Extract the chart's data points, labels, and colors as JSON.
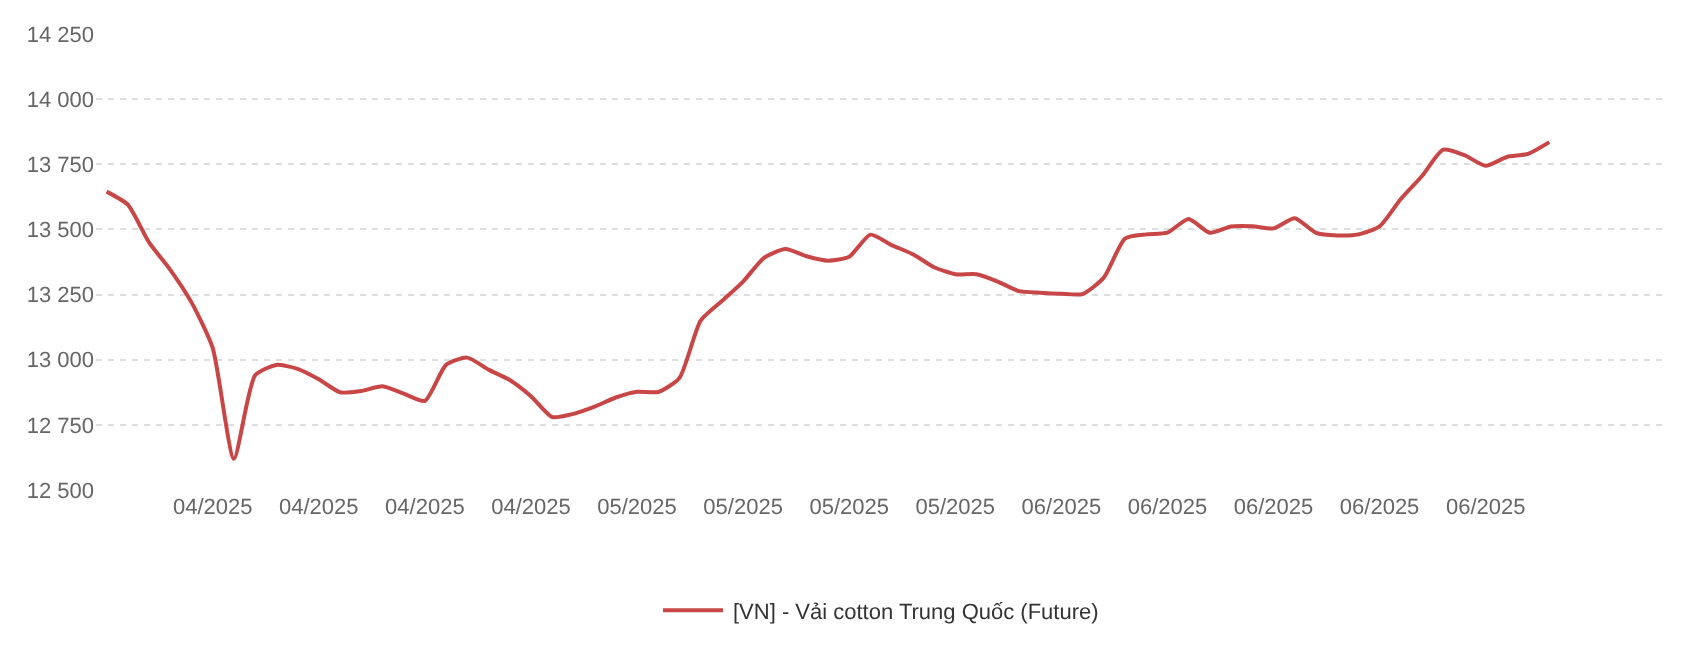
{
  "chart_data": {
    "type": "line",
    "categories": [
      null,
      null,
      null,
      null,
      null,
      "04/2025",
      null,
      null,
      null,
      null,
      "04/2025",
      null,
      null,
      null,
      null,
      "04/2025",
      null,
      null,
      null,
      null,
      "04/2025",
      null,
      null,
      null,
      null,
      "05/2025",
      null,
      null,
      null,
      null,
      "05/2025",
      null,
      null,
      null,
      null,
      "05/2025",
      null,
      null,
      null,
      null,
      "05/2025",
      null,
      null,
      null,
      null,
      "06/2025",
      null,
      null,
      null,
      null,
      "06/2025",
      null,
      null,
      null,
      null,
      "06/2025",
      null,
      null,
      null,
      null,
      "06/2025",
      null,
      null,
      null,
      null,
      "06/2025",
      null,
      null,
      null
    ],
    "series": [
      {
        "name": "[VN] - Vải cotton Trung Quốc (Future)",
        "color": "#c84646",
        "values": [
          13645,
          13595,
          13450,
          13345,
          13220,
          13045,
          12620,
          12940,
          12980,
          12965,
          12925,
          12875,
          12880,
          12898,
          12870,
          12842,
          12980,
          13008,
          12962,
          12922,
          12860,
          12780,
          12792,
          12820,
          12855,
          12877,
          12876,
          12930,
          13150,
          13225,
          13300,
          13392,
          13425,
          13397,
          13380,
          13395,
          13480,
          13440,
          13405,
          13355,
          13328,
          13328,
          13300,
          13263,
          13257,
          13253,
          13252,
          13315,
          13465,
          13481,
          13488,
          13540,
          13487,
          13511,
          13512,
          13504,
          13543,
          13487,
          13477,
          13481,
          13512,
          13617,
          13705,
          13806,
          13785,
          13744,
          13778,
          13790,
          13835
        ]
      }
    ],
    "ylim": [
      12500,
      14250
    ],
    "yticks": [
      {
        "value": 12500,
        "label": "12 500"
      },
      {
        "value": 12750,
        "label": "12 750"
      },
      {
        "value": 13000,
        "label": "13 000"
      },
      {
        "value": 13250,
        "label": "13 250"
      },
      {
        "value": 13500,
        "label": "13 500"
      },
      {
        "value": 13750,
        "label": "13 750"
      },
      {
        "value": 14000,
        "label": "14 000"
      },
      {
        "value": 14250,
        "label": "14 250"
      }
    ],
    "grid": "y",
    "legend": "bottom",
    "marker": "none",
    "line_style": "solid"
  }
}
